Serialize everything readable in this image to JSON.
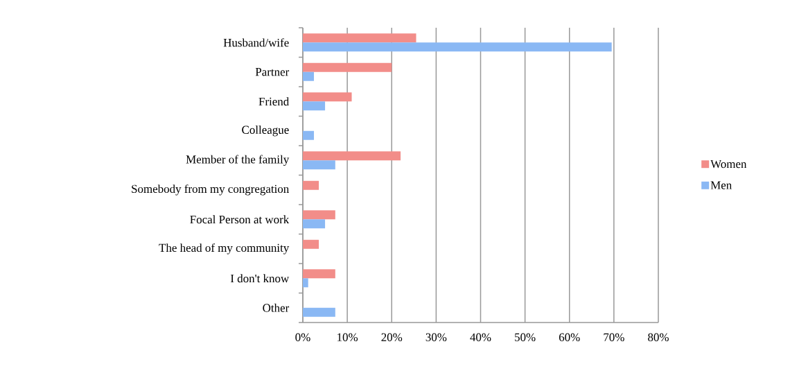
{
  "chart_data": {
    "type": "bar",
    "orientation": "horizontal",
    "categories": [
      "Husband/wife",
      "Partner",
      "Friend",
      "Colleague",
      "Member of the family",
      "Somebody from my congregation",
      "Focal Person at work",
      "The head of my community",
      "I don't know",
      "Other"
    ],
    "series": [
      {
        "name": "Women",
        "color": "#f28d89",
        "values": [
          25.5,
          20,
          11,
          0,
          22,
          3.6,
          7.3,
          3.6,
          7.3,
          0
        ]
      },
      {
        "name": "Men",
        "color": "#8ab8f4",
        "values": [
          69.5,
          2.5,
          5,
          2.5,
          7.3,
          0,
          5,
          0,
          1.2,
          7.3
        ]
      }
    ],
    "xlim": [
      0,
      80
    ],
    "xticks": [
      {
        "value": 0,
        "label": "0%"
      },
      {
        "value": 10,
        "label": "10%"
      },
      {
        "value": 20,
        "label": "20%"
      },
      {
        "value": 30,
        "label": "30%"
      },
      {
        "value": 40,
        "label": "40%"
      },
      {
        "value": 50,
        "label": "50%"
      },
      {
        "value": 60,
        "label": "60%"
      },
      {
        "value": 70,
        "label": "70%"
      },
      {
        "value": 80,
        "label": "80%"
      }
    ],
    "grid": "x",
    "legend": "right"
  }
}
